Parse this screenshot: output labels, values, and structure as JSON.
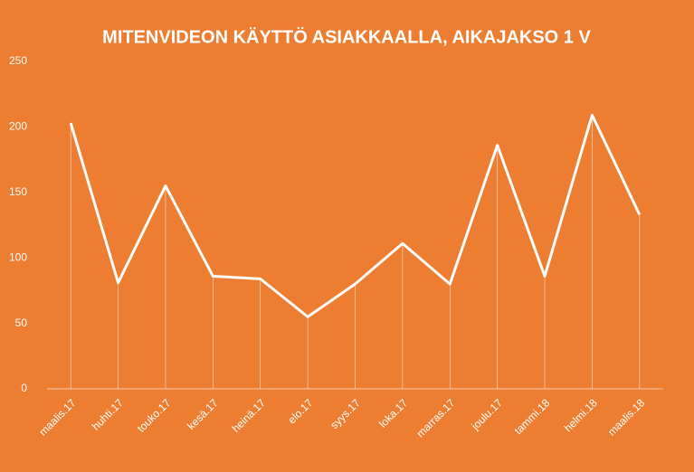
{
  "chart_data": {
    "type": "line",
    "title": "MITENVIDEON KÄYTTÖ ASIAKKAALLA, AIKAJAKSO 1 V",
    "categories": [
      "maalis.17",
      "huhti.17",
      "touko.17",
      "kesä.17",
      "heinä.17",
      "elo.17",
      "syys.17",
      "loka.17",
      "marras.17",
      "joulu.17",
      "tammi.18",
      "helmi.18",
      "maalis.18"
    ],
    "values": [
      203,
      81,
      155,
      86,
      84,
      55,
      80,
      111,
      80,
      186,
      86,
      209,
      133
    ],
    "color": "#ffffff",
    "background": "#ed7d31",
    "drop_lines": true,
    "ylim": [
      0,
      250
    ],
    "yticks": [
      0,
      50,
      100,
      150,
      200,
      250
    ]
  }
}
